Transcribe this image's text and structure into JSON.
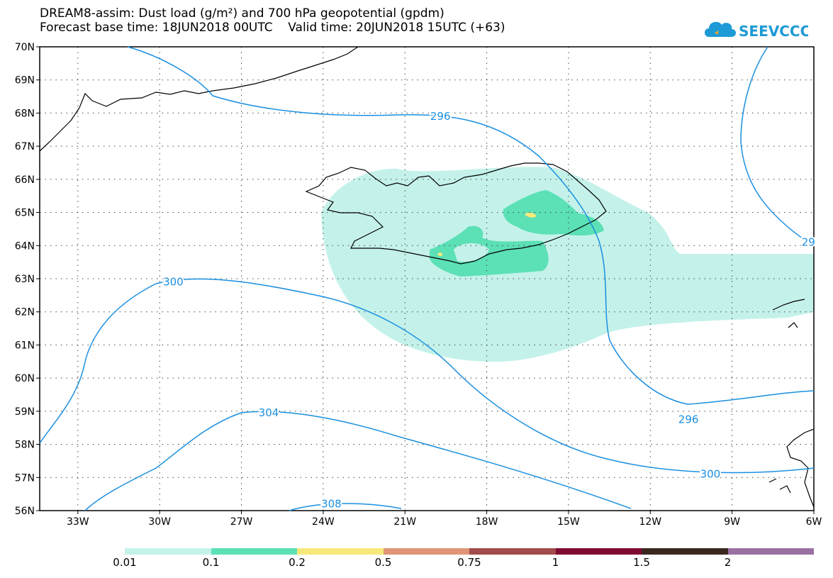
{
  "header": {
    "line1": "DREAM8-assim: Dust load (g/m²) and 700 hPa geopotential (gpdm)",
    "line2": "Forecast base time: 18JUN2018 00UTC    Valid time: 20JUN2018 15UTC (+63)"
  },
  "logo": {
    "text": "SEEVCCC",
    "color": "#1e9ad6",
    "accent": "#f5a623",
    "icon": "cloud-icon"
  },
  "map": {
    "lat_labels": [
      "70N",
      "69N",
      "68N",
      "67N",
      "66N",
      "65N",
      "64N",
      "63N",
      "62N",
      "61N",
      "60N",
      "59N",
      "58N",
      "57N",
      "56N"
    ],
    "lon_labels": [
      "33W",
      "30W",
      "27W",
      "24W",
      "21W",
      "18W",
      "15W",
      "12W",
      "9W",
      "6W"
    ],
    "lat_range": [
      56,
      70
    ],
    "lon_range": [
      -34.4,
      -6
    ],
    "contour_color": "#1a8fe0",
    "contour_labels": [
      {
        "text": "296",
        "lon": -19.7,
        "lat": 67.9
      },
      {
        "text": "300",
        "lon": -29.5,
        "lat": 62.9
      },
      {
        "text": "304",
        "lon": -26.0,
        "lat": 58.95
      },
      {
        "text": "308",
        "lon": -23.7,
        "lat": 56.2
      },
      {
        "text": "296",
        "lon": -10.6,
        "lat": 58.75
      },
      {
        "text": "300",
        "lon": -9.8,
        "lat": 57.1
      },
      {
        "text": "29",
        "lon": -6.2,
        "lat": 64.1
      }
    ]
  },
  "legend": {
    "colors": [
      "#c4f2ea",
      "#5ce0b6",
      "#f7e87a",
      "#e09576",
      "#a34a4a",
      "#800a32",
      "#3a2820",
      "#9b70a3"
    ],
    "labels": [
      "0.01",
      "0.1",
      "0.2",
      "0.5",
      "0.75",
      "1",
      "1.5",
      "2"
    ]
  }
}
